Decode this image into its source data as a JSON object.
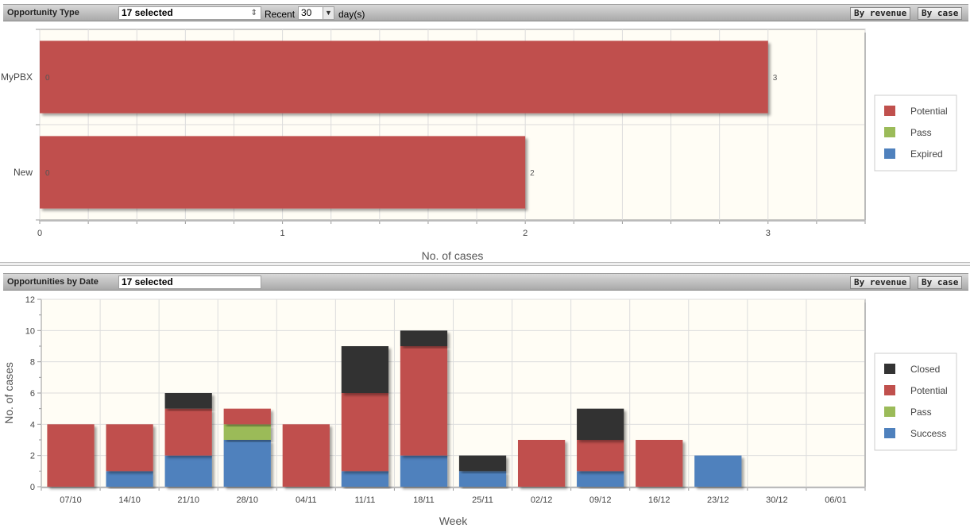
{
  "panel1": {
    "title": "Opportunity Type",
    "select_value": "17 selected",
    "recent_label": "Recent",
    "days_value": "30",
    "days_unit": "day(s)",
    "by_revenue_label": "By revenue",
    "by_case_label": "By case"
  },
  "panel2": {
    "title": "Opportunities by Date",
    "select_value": "17 selected",
    "by_revenue_label": "By revenue",
    "by_case_label": "By case"
  },
  "chart_data": [
    {
      "type": "bar",
      "orientation": "horizontal",
      "categories": [
        "MyPBX",
        "New"
      ],
      "series": [
        {
          "name": "Potential",
          "color": "#c0504d",
          "values": [
            3,
            2
          ]
        },
        {
          "name": "Pass",
          "color": "#9bbb59",
          "values": [
            0,
            0
          ]
        },
        {
          "name": "Expired",
          "color": "#4f81bd",
          "values": [
            0,
            0
          ]
        }
      ],
      "data_labels": {
        "start": [
          "0",
          "0"
        ],
        "end": [
          "3",
          "2"
        ]
      },
      "xlabel": "No. of cases",
      "xlim": [
        0,
        3.4
      ],
      "xticks": [
        "0",
        "1",
        "2",
        "3"
      ],
      "grid": true,
      "legend": "right"
    },
    {
      "type": "bar",
      "stacked": true,
      "categories": [
        "07/10",
        "14/10",
        "21/10",
        "28/10",
        "04/11",
        "11/11",
        "18/11",
        "25/11",
        "02/12",
        "09/12",
        "16/12",
        "23/12",
        "30/12",
        "06/01"
      ],
      "series": [
        {
          "name": "Success",
          "color": "#4f81bd",
          "values": [
            0,
            1,
            2,
            3,
            0,
            1,
            2,
            1,
            0,
            1,
            0,
            2,
            0,
            0
          ]
        },
        {
          "name": "Pass",
          "color": "#9bbb59",
          "values": [
            0,
            0,
            0,
            1,
            0,
            0,
            0,
            0,
            0,
            0,
            0,
            0,
            0,
            0
          ]
        },
        {
          "name": "Potential",
          "color": "#c0504d",
          "values": [
            4,
            3,
            3,
            1,
            4,
            5,
            7,
            0,
            3,
            2,
            3,
            0,
            0,
            0
          ]
        },
        {
          "name": "Closed",
          "color": "#333333",
          "values": [
            0,
            0,
            1,
            0,
            0,
            3,
            1,
            1,
            0,
            2,
            0,
            0,
            0,
            0
          ]
        }
      ],
      "legend_order": [
        "Closed",
        "Potential",
        "Pass",
        "Success"
      ],
      "xlabel": "Week",
      "ylabel": "No. of cases",
      "ylim": [
        0,
        12
      ],
      "yticks": [
        "0",
        "2",
        "4",
        "6",
        "8",
        "10",
        "12"
      ],
      "grid": true,
      "legend": "right"
    }
  ]
}
